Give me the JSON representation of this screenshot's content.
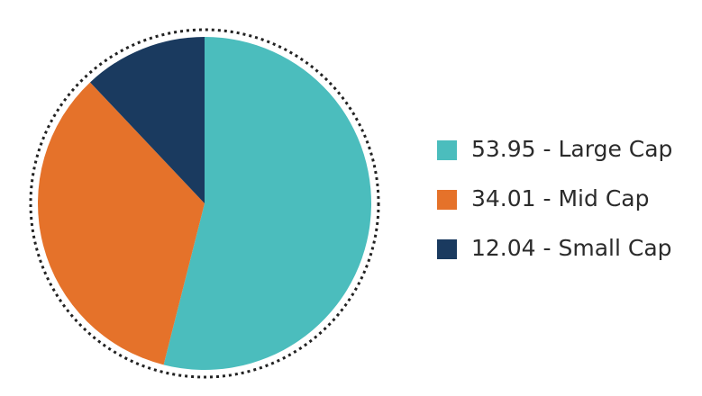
{
  "chart_data": {
    "type": "pie",
    "categories": [
      "53.95 - Large Cap",
      "34.01 - Mid Cap",
      "12.04 - Small Cap"
    ],
    "values": [
      53.95,
      34.01,
      12.04
    ],
    "colors": [
      "#4bbdbd",
      "#e5722a",
      "#1a3a5f"
    ],
    "legend": "right"
  }
}
